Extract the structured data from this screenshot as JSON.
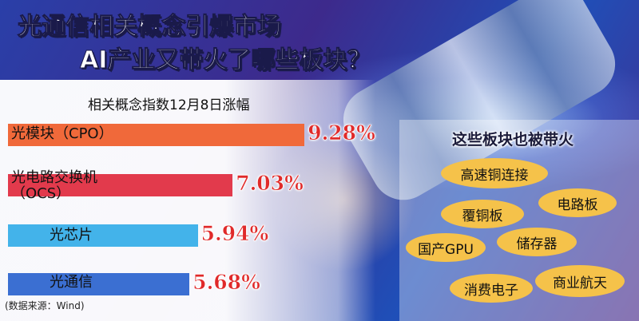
{
  "chart_data": {
    "type": "bar",
    "title": [
      "光通信相关概念引爆市场",
      "AI产业又带火了哪些板块？"
    ],
    "subtitle": "相关概念指数12月8日涨幅",
    "categories": [
      "光模块（CPO）",
      "光电路交换机\n（OCS）",
      "光芯片",
      "光通信"
    ],
    "values": [
      9.28,
      7.03,
      5.94,
      5.68
    ],
    "value_labels": [
      "9.28%",
      "7.03%",
      "5.94%",
      "5.68%"
    ],
    "colors": [
      "#f0693a",
      "#e23a4c",
      "#43b3ea",
      "#3b6fd2"
    ]
  },
  "sidebar": {
    "title": "这些板块也被带火",
    "items": [
      "高速铜连接",
      "电路板",
      "覆铜板",
      "国产GPU",
      "储存器",
      "消费电子",
      "商业航天"
    ]
  },
  "source": "(数据来源：Wind)"
}
